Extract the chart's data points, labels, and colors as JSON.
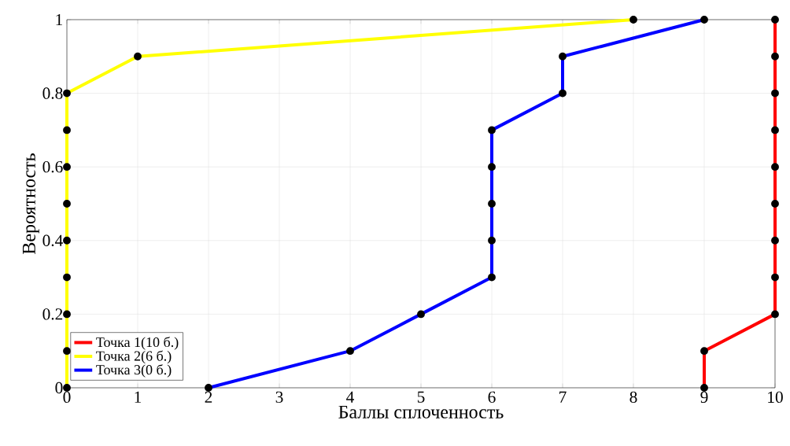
{
  "chart_data": {
    "type": "line",
    "xlabel": "Баллы сплоченность",
    "ylabel": "Вероятность",
    "xlim": [
      0,
      10
    ],
    "ylim": [
      0,
      1
    ],
    "xticks": [
      0,
      1,
      2,
      3,
      4,
      5,
      6,
      7,
      8,
      9,
      10
    ],
    "yticks": [
      0,
      0.2,
      0.4,
      0.6,
      0.8,
      1
    ],
    "grid": true,
    "legend": "bottom left",
    "marker": "circle",
    "line_style": "solid",
    "series": [
      {
        "name": "Точка 1(10 б.)",
        "color": "#ff0000",
        "x": [
          9,
          9,
          10,
          10,
          10,
          10,
          10,
          10,
          10,
          10,
          10
        ],
        "values": [
          0,
          0.1,
          0.2,
          0.3,
          0.4,
          0.5,
          0.6,
          0.7,
          0.8,
          0.9,
          1
        ]
      },
      {
        "name": "Точка 2(6 б.)",
        "color": "#ffff00",
        "x": [
          0,
          0,
          0,
          0,
          0,
          0,
          0,
          0,
          0,
          1,
          8
        ],
        "values": [
          0,
          0.1,
          0.2,
          0.3,
          0.4,
          0.5,
          0.6,
          0.7,
          0.8,
          0.9,
          1
        ]
      },
      {
        "name": "Точка 3(0 б.)",
        "color": "#0000ff",
        "x": [
          2,
          4,
          5,
          6,
          6,
          6,
          6,
          6,
          7,
          7,
          9
        ],
        "values": [
          0,
          0.1,
          0.2,
          0.3,
          0.4,
          0.5,
          0.6,
          0.7,
          0.8,
          0.9,
          1
        ]
      }
    ]
  }
}
